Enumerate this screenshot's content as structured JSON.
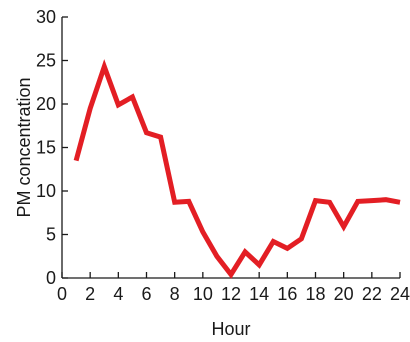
{
  "chart_data": {
    "type": "line",
    "xlabel": "Hour",
    "ylabel": "PM concentration",
    "xlim": [
      0,
      24
    ],
    "ylim": [
      0,
      30
    ],
    "x_ticks": [
      0,
      2,
      4,
      6,
      8,
      10,
      12,
      14,
      16,
      18,
      20,
      22,
      24
    ],
    "y_ticks": [
      0,
      5,
      10,
      15,
      20,
      25,
      30
    ],
    "grid": false,
    "series": [
      {
        "color": "#e31e24",
        "points": [
          {
            "x": 1,
            "y": 13.5
          },
          {
            "x": 2,
            "y": 19.5
          },
          {
            "x": 3,
            "y": 24.3
          },
          {
            "x": 4,
            "y": 19.9
          },
          {
            "x": 5,
            "y": 20.8
          },
          {
            "x": 6,
            "y": 16.7
          },
          {
            "x": 7,
            "y": 16.2
          },
          {
            "x": 8,
            "y": 8.7
          },
          {
            "x": 9,
            "y": 8.8
          },
          {
            "x": 10,
            "y": 5.3
          },
          {
            "x": 11,
            "y": 2.5
          },
          {
            "x": 12,
            "y": 0.4
          },
          {
            "x": 13,
            "y": 3.0
          },
          {
            "x": 14,
            "y": 1.5
          },
          {
            "x": 15,
            "y": 4.2
          },
          {
            "x": 16,
            "y": 3.4
          },
          {
            "x": 17,
            "y": 4.5
          },
          {
            "x": 18,
            "y": 8.9
          },
          {
            "x": 19,
            "y": 8.7
          },
          {
            "x": 20,
            "y": 5.9
          },
          {
            "x": 21,
            "y": 8.8
          },
          {
            "x": 22,
            "y": 8.9
          },
          {
            "x": 23,
            "y": 9.0
          },
          {
            "x": 24,
            "y": 8.7
          }
        ]
      }
    ]
  }
}
